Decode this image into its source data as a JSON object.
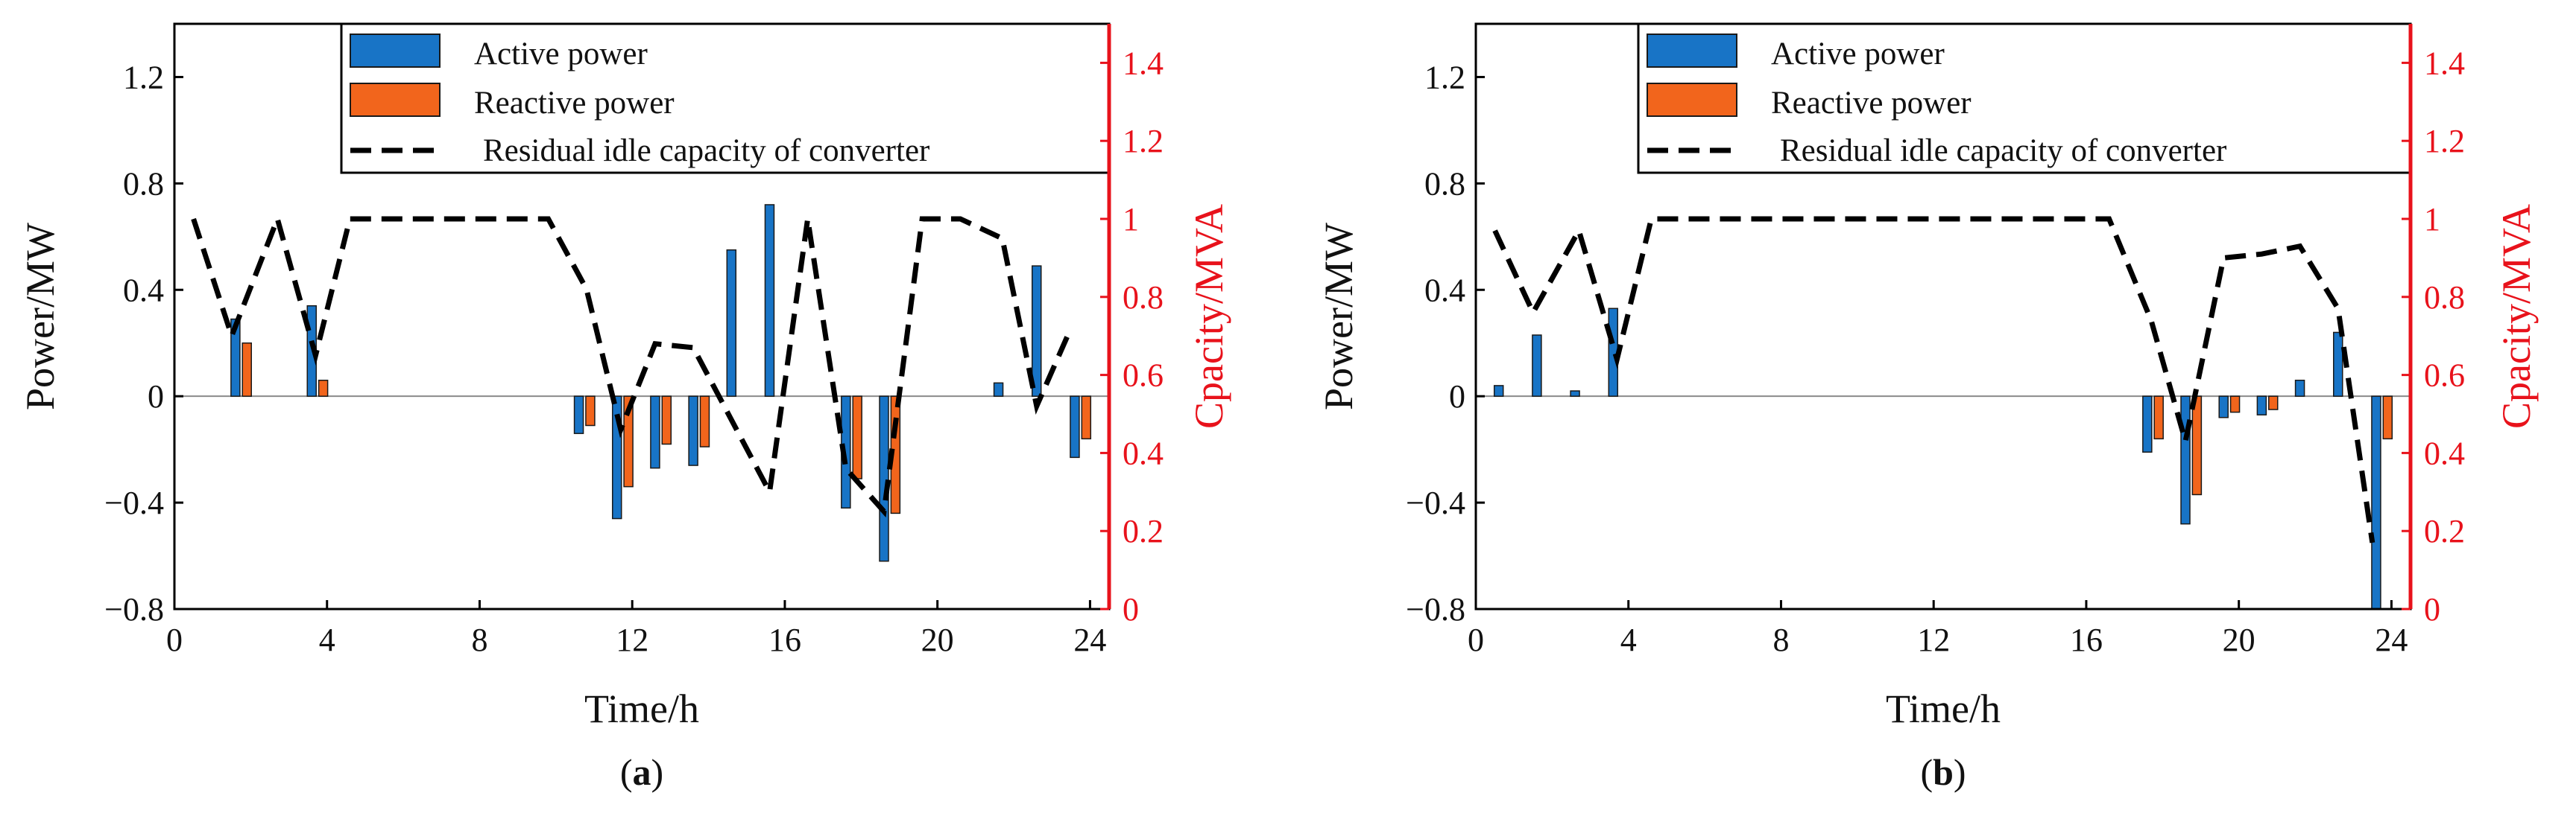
{
  "colors": {
    "active": "#1874c6",
    "reactive": "#f2651c",
    "capacity_axis": "#e8121b",
    "line": "#000000"
  },
  "legend": {
    "active": "Active power",
    "reactive": "Reactive power",
    "capacity": "Residual idle capacity of converter"
  },
  "chart_data": [
    {
      "type": "bar+line",
      "caption": "a",
      "xlabel": "Time/h",
      "ylabel": "Power/MW",
      "y2label": "Cpacity/MVA",
      "xlim": [
        0,
        24.5
      ],
      "ylim": [
        -0.8,
        1.4
      ],
      "y2lim": [
        0,
        1.5
      ],
      "xticks": [
        "0",
        "4",
        "8",
        "12",
        "16",
        "20",
        "24"
      ],
      "yticks": [
        "−0.8",
        "−0.4",
        "0",
        "0.4",
        "0.8",
        "1.2"
      ],
      "y2ticks": [
        "0",
        "0.2",
        "0.4",
        "0.6",
        "0.8",
        "1",
        "1.2",
        "1.4"
      ],
      "series": [
        {
          "name": "Active power",
          "x": [
            1.6,
            3.6,
            10.6,
            11.6,
            12.6,
            13.6,
            14.6,
            15.6,
            17.6,
            18.6,
            21.6,
            22.6,
            23.6
          ],
          "values": [
            0.29,
            0.34,
            -0.14,
            -0.46,
            -0.27,
            -0.26,
            0.55,
            0.72,
            -0.42,
            -0.62,
            0.05,
            0.49,
            -0.23
          ]
        },
        {
          "name": "Reactive power",
          "x": [
            1.9,
            3.9,
            10.9,
            11.9,
            12.9,
            13.9,
            17.9,
            18.9,
            23.9
          ],
          "values": [
            0.2,
            0.06,
            -0.11,
            -0.34,
            -0.18,
            -0.19,
            -0.31,
            -0.44,
            -0.16
          ]
        },
        {
          "name": "Residual idle capacity of converter",
          "x": [
            0.5,
            1.5,
            2.7,
            3.7,
            4.6,
            9.8,
            10.8,
            11.7,
            12.6,
            13.6,
            15.6,
            16.6,
            17.6,
            18.6,
            19.6,
            20.6,
            21.7,
            22.6,
            23.5
          ],
          "values": [
            1.0,
            0.7,
            1.0,
            0.65,
            1.0,
            1.0,
            0.82,
            0.46,
            0.68,
            0.67,
            0.3,
            1.0,
            0.36,
            0.25,
            1.0,
            1.0,
            0.95,
            0.52,
            0.72
          ]
        }
      ]
    },
    {
      "type": "bar+line",
      "caption": "b",
      "xlabel": "Time/h",
      "ylabel": "Power/MW",
      "y2label": "Cpacity/MVA",
      "xlim": [
        0,
        24.5
      ],
      "ylim": [
        -0.8,
        1.4
      ],
      "y2lim": [
        0,
        1.5
      ],
      "xticks": [
        "0",
        "4",
        "8",
        "12",
        "16",
        "20",
        "24"
      ],
      "yticks": [
        "−0.8",
        "−0.4",
        "0",
        "0.4",
        "0.8",
        "1.2"
      ],
      "y2ticks": [
        "0",
        "0.2",
        "0.4",
        "0.6",
        "0.8",
        "1",
        "1.2",
        "1.4"
      ],
      "series": [
        {
          "name": "Active power",
          "x": [
            0.6,
            1.6,
            2.6,
            3.6,
            17.6,
            18.6,
            19.6,
            20.6,
            21.6,
            22.6,
            23.6
          ],
          "values": [
            0.04,
            0.23,
            0.02,
            0.33,
            -0.21,
            -0.48,
            -0.08,
            -0.07,
            0.06,
            0.24,
            -0.8
          ]
        },
        {
          "name": "Reactive power",
          "x": [
            17.9,
            18.9,
            19.9,
            20.9,
            23.9
          ],
          "values": [
            -0.16,
            -0.37,
            -0.06,
            -0.05,
            -0.16
          ]
        },
        {
          "name": "Residual idle capacity of converter",
          "x": [
            0.5,
            1.5,
            2.7,
            3.7,
            4.6,
            16.6,
            17.7,
            18.6,
            19.6,
            20.6,
            21.6,
            22.6,
            23.5
          ],
          "values": [
            0.97,
            0.76,
            0.97,
            0.64,
            1.0,
            1.0,
            0.74,
            0.43,
            0.9,
            0.91,
            0.93,
            0.77,
            0.17
          ]
        }
      ]
    }
  ]
}
